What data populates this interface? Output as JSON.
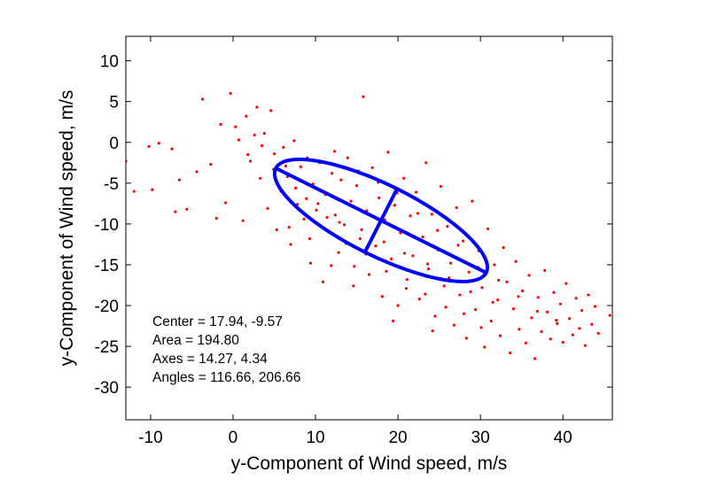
{
  "chart_data": {
    "type": "scatter",
    "title": "",
    "xlabel": "y-Component of Wind speed, m/s",
    "ylabel": "y-Component of Wind speed, m/s",
    "xlim": [
      -13,
      46
    ],
    "ylim": [
      -34,
      13
    ],
    "xticks": [
      -10,
      0,
      10,
      20,
      30,
      40
    ],
    "yticks": [
      10,
      5,
      0,
      -5,
      -10,
      -15,
      -20,
      -25,
      -30
    ],
    "grid": false,
    "point_color": "#ff0000",
    "ellipse_color": "#0000ff",
    "points_summary": {
      "center": [
        17.94,
        -9.57
      ],
      "axes": [
        14.27,
        4.34
      ],
      "angle_deg": 116.66
    },
    "points": [
      [
        -13.0,
        -2.3
      ],
      [
        -12.0,
        -6.0
      ],
      [
        -10.2,
        -0.5
      ],
      [
        -9.8,
        -5.8
      ],
      [
        -9.0,
        -0.1
      ],
      [
        -7.4,
        -0.8
      ],
      [
        -7.0,
        -8.5
      ],
      [
        -6.5,
        -4.6
      ],
      [
        -5.6,
        -8.2
      ],
      [
        -4.4,
        -3.6
      ],
      [
        -3.7,
        5.3
      ],
      [
        -2.7,
        -2.7
      ],
      [
        -2.0,
        -9.3
      ],
      [
        -1.5,
        2.2
      ],
      [
        -0.9,
        -7.4
      ],
      [
        -0.3,
        6.0
      ],
      [
        0.3,
        1.9
      ],
      [
        0.7,
        0.3
      ],
      [
        1.2,
        -9.6
      ],
      [
        1.6,
        3.2
      ],
      [
        2.1,
        -2.3
      ],
      [
        2.6,
        0.9
      ],
      [
        2.9,
        4.3
      ],
      [
        3.3,
        -4.4
      ],
      [
        3.8,
        1.1
      ],
      [
        4.2,
        -8.1
      ],
      [
        4.6,
        3.9
      ],
      [
        5.0,
        -1.4
      ],
      [
        5.3,
        -10.7
      ],
      [
        5.8,
        -6.0
      ],
      [
        6.1,
        -0.6
      ],
      [
        6.6,
        -4.2
      ],
      [
        7.0,
        -12.5
      ],
      [
        7.4,
        0.2
      ],
      [
        7.8,
        -7.6
      ],
      [
        8.2,
        -3.0
      ],
      [
        8.6,
        -9.4
      ],
      [
        9.0,
        -1.9
      ],
      [
        9.4,
        -14.8
      ],
      [
        9.7,
        -5.1
      ],
      [
        10.1,
        -8.3
      ],
      [
        10.5,
        -2.5
      ],
      [
        10.9,
        -17.1
      ],
      [
        11.2,
        -6.4
      ],
      [
        11.6,
        -11.0
      ],
      [
        12.0,
        -3.8
      ],
      [
        12.4,
        -8.9
      ],
      [
        12.8,
        -13.5
      ],
      [
        13.1,
        -4.6
      ],
      [
        13.5,
        -10.1
      ],
      [
        13.9,
        -1.9
      ],
      [
        14.3,
        -7.2
      ],
      [
        14.7,
        -15.2
      ],
      [
        15.0,
        -5.3
      ],
      [
        15.4,
        -11.8
      ],
      [
        15.8,
        5.6
      ],
      [
        16.2,
        -8.4
      ],
      [
        16.5,
        -16.2
      ],
      [
        16.9,
        -3.1
      ],
      [
        17.3,
        -12.7
      ],
      [
        17.7,
        -6.8
      ],
      [
        18.1,
        -18.9
      ],
      [
        18.4,
        -9.5
      ],
      [
        18.8,
        -1.2
      ],
      [
        19.2,
        -14.3
      ],
      [
        19.6,
        -7.7
      ],
      [
        20.0,
        -20.0
      ],
      [
        20.3,
        -11.1
      ],
      [
        20.7,
        -4.4
      ],
      [
        21.1,
        -16.8
      ],
      [
        21.5,
        -9.0
      ],
      [
        21.8,
        -13.9
      ],
      [
        22.2,
        -6.1
      ],
      [
        22.6,
        -19.2
      ],
      [
        23.0,
        -11.6
      ],
      [
        23.4,
        -2.5
      ],
      [
        23.7,
        -15.5
      ],
      [
        24.1,
        -8.8
      ],
      [
        24.5,
        -21.3
      ],
      [
        24.9,
        -13.2
      ],
      [
        25.2,
        -5.4
      ],
      [
        25.6,
        -17.6
      ],
      [
        26.0,
        -10.3
      ],
      [
        26.4,
        -14.8
      ],
      [
        26.8,
        -22.4
      ],
      [
        27.1,
        -8.0
      ],
      [
        27.5,
        -18.7
      ],
      [
        27.9,
        -12.1
      ],
      [
        28.3,
        -24.0
      ],
      [
        28.6,
        -15.9
      ],
      [
        29.0,
        -7.2
      ],
      [
        29.4,
        -20.5
      ],
      [
        29.8,
        -13.3
      ],
      [
        30.2,
        -17.8
      ],
      [
        30.5,
        -25.1
      ],
      [
        30.9,
        -10.6
      ],
      [
        31.3,
        -21.9
      ],
      [
        31.7,
        -15.0
      ],
      [
        32.1,
        -19.3
      ],
      [
        32.4,
        -23.7
      ],
      [
        32.8,
        -12.9
      ],
      [
        33.2,
        -17.1
      ],
      [
        33.6,
        -25.8
      ],
      [
        34.0,
        -20.4
      ],
      [
        34.3,
        -14.6
      ],
      [
        34.7,
        -22.9
      ],
      [
        35.1,
        -18.2
      ],
      [
        35.5,
        -24.6
      ],
      [
        35.9,
        -16.3
      ],
      [
        36.2,
        -21.5
      ],
      [
        36.6,
        -26.5
      ],
      [
        37.0,
        -19.0
      ],
      [
        37.4,
        -23.2
      ],
      [
        37.8,
        -15.7
      ],
      [
        38.1,
        -20.8
      ],
      [
        38.5,
        -24.1
      ],
      [
        38.9,
        -18.4
      ],
      [
        39.3,
        -22.2
      ],
      [
        39.7,
        -19.8
      ],
      [
        40.0,
        -24.5
      ],
      [
        40.4,
        -17.3
      ],
      [
        40.8,
        -21.6
      ],
      [
        41.2,
        -23.6
      ],
      [
        41.6,
        -19.1
      ],
      [
        42.0,
        -22.8
      ],
      [
        42.3,
        -20.6
      ],
      [
        42.7,
        -24.9
      ],
      [
        43.1,
        -18.7
      ],
      [
        43.5,
        -22.3
      ],
      [
        43.9,
        -20.1
      ],
      [
        44.3,
        -23.4
      ],
      [
        45.7,
        -21.2
      ],
      [
        3.5,
        -0.4
      ],
      [
        6.4,
        -2.9
      ],
      [
        8.9,
        -6.9
      ],
      [
        11.4,
        -9.2
      ],
      [
        13.7,
        -12.4
      ],
      [
        16.1,
        -13.7
      ],
      [
        18.6,
        -15.8
      ],
      [
        21.0,
        -17.9
      ],
      [
        23.3,
        -18.6
      ],
      [
        25.8,
        -20.2
      ],
      [
        28.0,
        -21.0
      ],
      [
        30.1,
        -22.7
      ],
      [
        12.3,
        -1.1
      ],
      [
        15.2,
        -3.5
      ],
      [
        17.6,
        -4.9
      ],
      [
        19.9,
        -6.2
      ],
      [
        22.4,
        -8.7
      ],
      [
        24.8,
        -10.8
      ],
      [
        27.3,
        -12.6
      ],
      [
        29.7,
        -15.3
      ],
      [
        32.2,
        -16.9
      ],
      [
        34.6,
        -18.9
      ],
      [
        36.9,
        -20.7
      ],
      [
        39.2,
        -21.8
      ],
      [
        1.8,
        -1.5
      ],
      [
        4.9,
        -3.3
      ],
      [
        7.6,
        -5.6
      ],
      [
        10.3,
        -7.5
      ],
      [
        12.9,
        -9.8
      ],
      [
        15.6,
        -10.7
      ],
      [
        18.3,
        -12.2
      ],
      [
        20.8,
        -13.6
      ],
      [
        23.6,
        -14.9
      ],
      [
        26.2,
        -16.6
      ],
      [
        28.8,
        -18.3
      ],
      [
        31.5,
        -19.6
      ],
      [
        9.3,
        -11.8
      ],
      [
        14.6,
        -17.6
      ],
      [
        19.4,
        -21.9
      ],
      [
        24.2,
        -23.1
      ],
      [
        6.8,
        -10.4
      ],
      [
        11.9,
        -15.1
      ]
    ],
    "annotations": [
      "Center = 17.94, -9.57",
      "Area = 194.80",
      "Axes = 14.27, 4.34",
      "Angles = 116.66, 206.66"
    ]
  }
}
